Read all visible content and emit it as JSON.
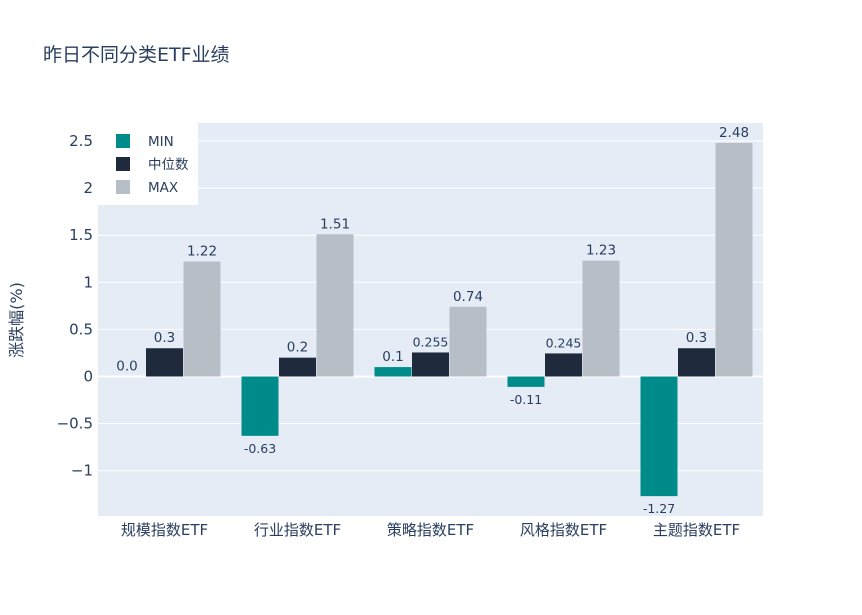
{
  "chart_data": {
    "type": "bar",
    "title": "昨日不同分类ETF业绩",
    "xlabel": "",
    "ylabel": "涨跌幅(%)",
    "ylim": [
      -1.5,
      2.65
    ],
    "yticks": [
      -1,
      -0.5,
      0,
      0.5,
      1,
      1.5,
      2,
      2.5
    ],
    "ytick_labels": [
      "−1",
      "−0.5",
      "0",
      "0.5",
      "1",
      "1.5",
      "2",
      "2.5"
    ],
    "categories": [
      "规模指数ETF",
      "行业指数ETF",
      "策略指数ETF",
      "风格指数ETF",
      "主题指数ETF"
    ],
    "series": [
      {
        "name": "MIN",
        "color": "#008B8B",
        "values": [
          0.0,
          -0.63,
          0.1,
          -0.11,
          -1.27
        ],
        "labels": [
          "0.0",
          "-0.63",
          "0.1",
          "-0.11",
          "-1.27"
        ]
      },
      {
        "name": "中位数",
        "color": "#1f2a3c",
        "values": [
          0.3,
          0.2,
          0.255,
          0.245,
          0.3
        ],
        "labels": [
          "0.3",
          "0.2",
          "0.255",
          "0.245",
          "0.3"
        ]
      },
      {
        "name": "MAX",
        "color": "#b8bec6",
        "values": [
          1.22,
          1.51,
          0.74,
          1.23,
          2.48
        ],
        "labels": [
          "1.22",
          "1.51",
          "0.74",
          "1.23",
          "2.48"
        ]
      }
    ],
    "grid": true,
    "legend": "top-left"
  }
}
